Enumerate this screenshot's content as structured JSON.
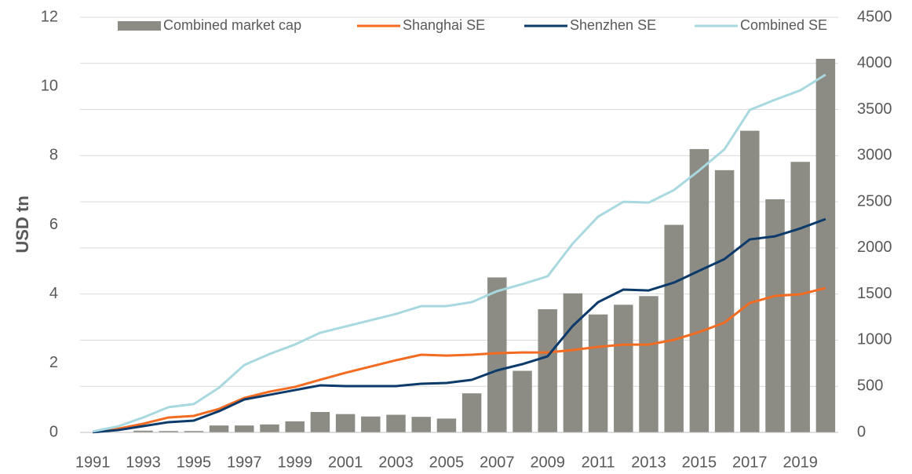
{
  "chart_data": {
    "type": "combo",
    "y_label": "USD tn",
    "categories": [
      "1991",
      null,
      "1993",
      null,
      "1995",
      null,
      "1997",
      null,
      "1999",
      null,
      "2001",
      null,
      "2003",
      null,
      "2005",
      null,
      "2007",
      null,
      "2009",
      null,
      "2011",
      null,
      "2013",
      null,
      "2015",
      null,
      "2017",
      null,
      "2019",
      null
    ],
    "ylim": [
      0,
      12
    ],
    "yticks": [
      0,
      2,
      4,
      6,
      8,
      10,
      12
    ],
    "y2lim": [
      0,
      4500
    ],
    "y2ticks": [
      0,
      500,
      1000,
      1500,
      2000,
      2500,
      3000,
      3500,
      4000,
      4500
    ],
    "grid": true,
    "legend": "top",
    "series": [
      {
        "name": "Combined market cap",
        "type": "bar",
        "color": "#8c8c84",
        "values": [
          0.01,
          0.01,
          0.05,
          0.04,
          0.04,
          0.2,
          0.2,
          0.23,
          0.32,
          0.59,
          0.53,
          0.46,
          0.51,
          0.45,
          0.4,
          1.13,
          4.48,
          1.78,
          3.56,
          4.02,
          3.41,
          3.69,
          3.94,
          6.0,
          8.19,
          7.58,
          8.72,
          6.74,
          7.82,
          10.8
        ]
      },
      {
        "name": "Shanghai SE",
        "type": "line",
        "axis": "y2",
        "color": "#f26b21",
        "values": [
          8,
          40,
          94,
          162,
          179,
          255,
          374,
          442,
          493,
          570,
          646,
          714,
          782,
          842,
          833,
          842,
          859,
          867,
          867,
          893,
          927,
          952,
          952,
          1003,
          1088,
          1190,
          1403,
          1480,
          1497,
          1565
        ]
      },
      {
        "name": "Shenzhen SE",
        "type": "line",
        "axis": "y2",
        "color": "#0b3a6b",
        "values": [
          2,
          25,
          68,
          111,
          128,
          230,
          357,
          408,
          459,
          510,
          502,
          502,
          502,
          527,
          536,
          570,
          672,
          740,
          825,
          1156,
          1412,
          1548,
          1539,
          1624,
          1752,
          1879,
          2092,
          2126,
          2211,
          2313
        ]
      },
      {
        "name": "Combined SE",
        "type": "line",
        "axis": "y2",
        "color": "#a8d8e0",
        "values": [
          10,
          65,
          162,
          273,
          307,
          485,
          731,
          850,
          952,
          1080,
          1148,
          1216,
          1284,
          1369,
          1369,
          1412,
          1531,
          1607,
          1692,
          2049,
          2339,
          2500,
          2491,
          2627,
          2840,
          3069,
          3495,
          3606,
          3708,
          3878
        ]
      }
    ]
  }
}
